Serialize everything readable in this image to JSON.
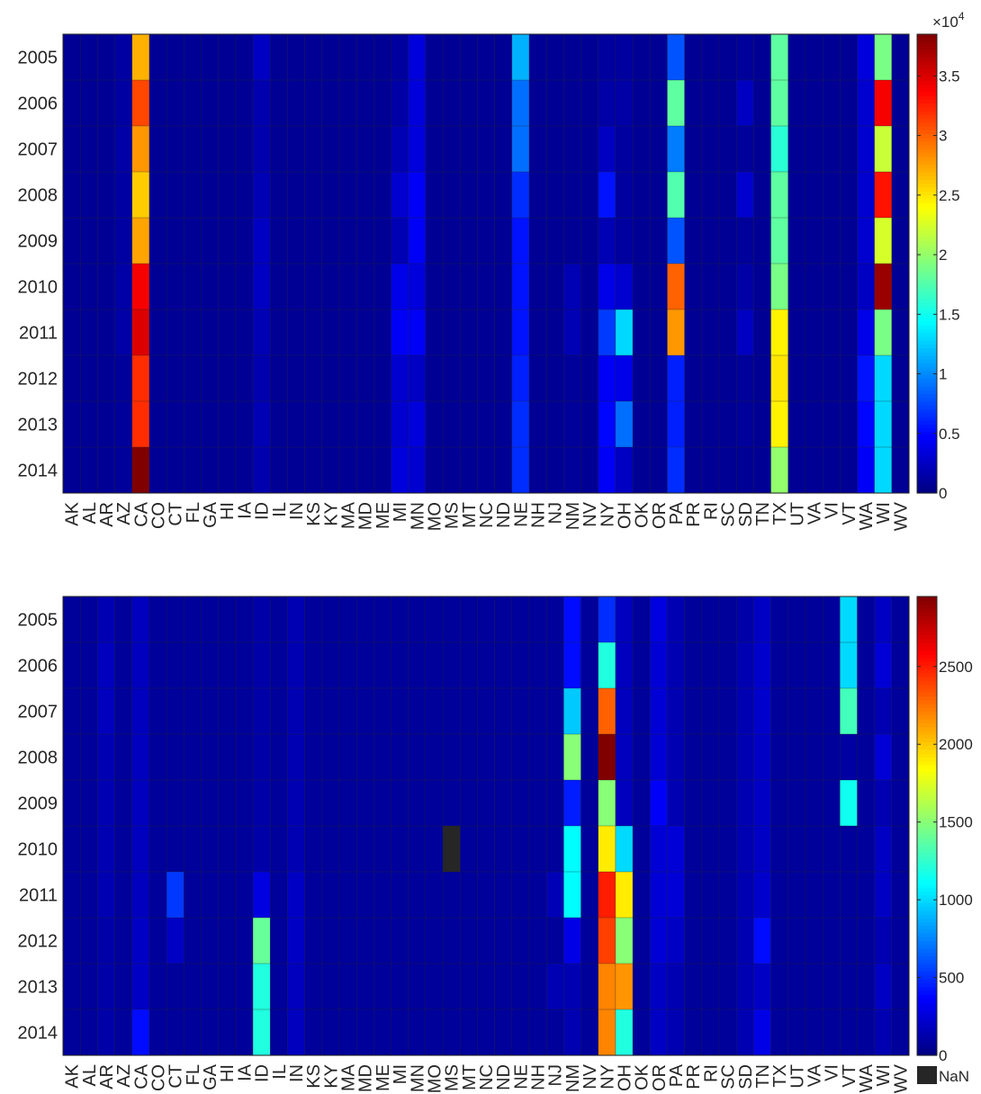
{
  "chart_data": [
    {
      "type": "heatmap",
      "x": [
        "AK",
        "AL",
        "AR",
        "AZ",
        "CA",
        "CO",
        "CT",
        "FL",
        "GA",
        "HI",
        "IA",
        "ID",
        "IL",
        "IN",
        "KS",
        "KY",
        "MA",
        "MD",
        "ME",
        "MI",
        "MN",
        "MO",
        "MS",
        "MT",
        "NC",
        "ND",
        "NE",
        "NH",
        "NJ",
        "NM",
        "NV",
        "NY",
        "OH",
        "OK",
        "OR",
        "PA",
        "PR",
        "RI",
        "SC",
        "SD",
        "TN",
        "TX",
        "UT",
        "VA",
        "VI",
        "VT",
        "WA",
        "WI",
        "WV"
      ],
      "y": [
        "2005",
        "2006",
        "2007",
        "2008",
        "2009",
        "2010",
        "2011",
        "2012",
        "2013",
        "2014"
      ],
      "colormap": "jet",
      "clim": [
        0,
        38500
      ],
      "colorbar": {
        "ticks": [
          0,
          5000,
          10000,
          15000,
          20000,
          25000,
          30000,
          35000
        ],
        "tick_labels": [
          "0",
          "0.5",
          "1",
          "1.5",
          "2",
          "2.5",
          "3",
          "3.5"
        ],
        "exponent_label": "×10",
        "exponent_power": "4"
      },
      "base_value": 800,
      "z": {
        "CA": [
          27000,
          31000,
          28000,
          26000,
          27500,
          34000,
          35000,
          32000,
          32000,
          38500
        ],
        "PA": [
          8000,
          18000,
          9500,
          17500,
          8000,
          30000,
          28000,
          6000,
          6000,
          6500
        ],
        "TX": [
          18000,
          18000,
          16000,
          18000,
          18000,
          19000,
          24500,
          25000,
          24500,
          20000
        ],
        "WI": [
          19000,
          34000,
          22000,
          33000,
          22500,
          37500,
          19000,
          13000,
          13000,
          13000
        ],
        "NE": [
          11500,
          9000,
          9000,
          6500,
          5500,
          5500,
          5500,
          6000,
          6500,
          6500
        ],
        "NY": [
          1200,
          1500,
          2500,
          5500,
          2000,
          4000,
          7000,
          4500,
          5000,
          4500
        ],
        "OH": [
          1200,
          1500,
          1200,
          1200,
          1200,
          3000,
          13000,
          4000,
          9000,
          2500
        ],
        "MI": [
          1200,
          1500,
          2000,
          3000,
          2000,
          4000,
          4500,
          3000,
          3000,
          3500
        ],
        "MN": [
          3500,
          3500,
          3500,
          4500,
          4500,
          3500,
          4500,
          2500,
          3500,
          3000
        ],
        "WA": [
          3500,
          3000,
          3000,
          3000,
          3000,
          2500,
          4000,
          5500,
          5000,
          4500
        ],
        "ID": [
          2500,
          1800,
          1800,
          2000,
          2500,
          2500,
          2000,
          1800,
          2000,
          1800
        ],
        "SD": [
          1000,
          2500,
          1000,
          3000,
          1000,
          1500,
          2500,
          1000,
          1000,
          800
        ],
        "AZ": [
          1300,
          1300,
          1500,
          1300,
          1300,
          1500,
          1500,
          1000,
          1000,
          1000
        ],
        "NM": [
          800,
          800,
          800,
          800,
          800,
          2000,
          2000,
          1000,
          1000,
          1000
        ]
      }
    },
    {
      "type": "heatmap",
      "x": [
        "AK",
        "AL",
        "AR",
        "AZ",
        "CA",
        "CO",
        "CT",
        "FL",
        "GA",
        "HI",
        "IA",
        "ID",
        "IL",
        "IN",
        "KS",
        "KY",
        "MA",
        "MD",
        "ME",
        "MI",
        "MN",
        "MO",
        "MS",
        "MT",
        "NC",
        "ND",
        "NE",
        "NH",
        "NJ",
        "NM",
        "NV",
        "NY",
        "OH",
        "OK",
        "OR",
        "PA",
        "PR",
        "RI",
        "SC",
        "SD",
        "TN",
        "TX",
        "UT",
        "VA",
        "VI",
        "VT",
        "WA",
        "WI",
        "WV"
      ],
      "y": [
        "2005",
        "2006",
        "2007",
        "2008",
        "2009",
        "2010",
        "2011",
        "2012",
        "2013",
        "2014"
      ],
      "colormap": "jet",
      "clim": [
        0,
        2950
      ],
      "colorbar": {
        "ticks": [
          0,
          500,
          1000,
          1500,
          2000,
          2500
        ],
        "tick_labels": [
          "0",
          "500",
          "1000",
          "1500",
          "2000",
          "2500"
        ],
        "nan_label": "NaN",
        "nan_color": "#262626"
      },
      "base_value": 80,
      "nan_cells": [
        [
          "MS",
          "2010"
        ]
      ],
      "z": {
        "NY": [
          500,
          1200,
          2300,
          2950,
          1500,
          1900,
          2500,
          2400,
          2200,
          2200
        ],
        "NM": [
          400,
          400,
          950,
          1500,
          450,
          1100,
          1100,
          300,
          150,
          150
        ],
        "VT": [
          1000,
          1000,
          1300,
          100,
          1150,
          80,
          80,
          80,
          80,
          80
        ],
        "OH": [
          180,
          180,
          180,
          180,
          180,
          1000,
          1900,
          1500,
          2150,
          1200
        ],
        "ID": [
          120,
          120,
          120,
          120,
          120,
          120,
          280,
          1400,
          1200,
          1200
        ],
        "CT": [
          80,
          80,
          80,
          80,
          80,
          80,
          530,
          200,
          80,
          80
        ],
        "OR": [
          280,
          250,
          250,
          250,
          350,
          250,
          250,
          250,
          200,
          200
        ],
        "PA": [
          150,
          150,
          150,
          150,
          150,
          250,
          250,
          200,
          150,
          150
        ],
        "TN": [
          200,
          220,
          220,
          200,
          200,
          200,
          220,
          400,
          200,
          300
        ],
        "CA": [
          180,
          180,
          180,
          180,
          180,
          180,
          180,
          200,
          200,
          400
        ],
        "NJ": [
          80,
          80,
          80,
          80,
          80,
          80,
          160,
          80,
          150,
          80
        ],
        "WI": [
          200,
          250,
          150,
          250,
          150,
          200,
          200,
          150,
          200,
          150
        ],
        "SD": [
          120,
          150,
          150,
          150,
          150,
          150,
          150,
          150,
          150,
          150
        ],
        "AR": [
          150,
          180,
          180,
          150,
          150,
          150,
          150,
          120,
          120,
          120
        ],
        "IN": [
          150,
          150,
          150,
          150,
          150,
          150,
          200,
          200,
          180,
          180
        ]
      }
    }
  ]
}
